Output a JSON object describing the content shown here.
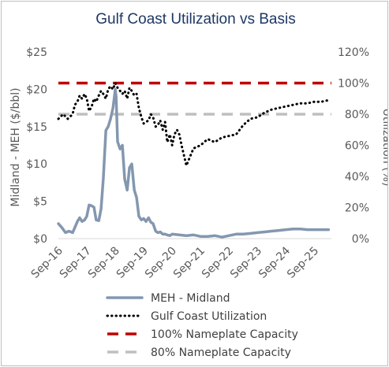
{
  "chart_data": {
    "type": "line",
    "title": "Gulf Coast Utilization vs Basis",
    "ylabel_left": "Midland - MEH ($/bbl)",
    "ylabel_right": "Utilization (%)",
    "ylim_left": [
      0,
      25
    ],
    "ylim_right": [
      0,
      120
    ],
    "yticks_left": [
      "$0",
      "$5",
      "$10",
      "$15",
      "$20",
      "$25"
    ],
    "yticks_right": [
      "0%",
      "20%",
      "40%",
      "60%",
      "80%",
      "100%",
      "120%"
    ],
    "x_categories": [
      "Sep-16",
      "Sep-17",
      "Sep-18",
      "Sep-19",
      "Sep-20",
      "Sep-21",
      "Sep-22",
      "Sep-23",
      "Sep-24",
      "Sep-25"
    ],
    "grid": false,
    "legend_position": "bottom",
    "series": [
      {
        "name": "MEH - Midland",
        "axis": "left",
        "style": "solid",
        "color": "#8497b0",
        "x": [
          0,
          0.12,
          0.25,
          0.37,
          0.5,
          0.58,
          0.67,
          0.75,
          0.83,
          0.92,
          1.0,
          1.08,
          1.17,
          1.25,
          1.33,
          1.42,
          1.5,
          1.58,
          1.67,
          1.75,
          1.83,
          1.92,
          2.0,
          2.03,
          2.08,
          2.17,
          2.25,
          2.33,
          2.42,
          2.5,
          2.58,
          2.67,
          2.75,
          2.83,
          2.92,
          3.0,
          3.08,
          3.17,
          3.25,
          3.33,
          3.42,
          3.5,
          3.58,
          3.67,
          3.75,
          3.83,
          3.92,
          4.0,
          4.25,
          4.5,
          4.75,
          5.0,
          5.25,
          5.5,
          5.75,
          6.0,
          6.25,
          6.5,
          6.75,
          7.0,
          7.25,
          7.5,
          7.75,
          8.0,
          8.25,
          8.5,
          8.75,
          9.0,
          9.25,
          9.5
        ],
        "y": [
          2.0,
          1.5,
          0.8,
          1.0,
          0.8,
          1.5,
          2.3,
          2.8,
          2.3,
          2.5,
          3.0,
          4.5,
          4.4,
          4.2,
          2.5,
          2.4,
          4.0,
          8.0,
          14.5,
          15.0,
          16.0,
          17.5,
          20.0,
          19.0,
          13.0,
          12.0,
          12.5,
          8.0,
          6.5,
          9.5,
          10.0,
          6.5,
          5.5,
          3.0,
          2.5,
          2.7,
          2.3,
          2.8,
          2.2,
          2.0,
          1.0,
          0.8,
          0.9,
          0.6,
          0.6,
          0.5,
          0.4,
          0.6,
          0.5,
          0.4,
          0.5,
          0.3,
          0.3,
          0.4,
          0.2,
          0.4,
          0.6,
          0.6,
          0.7,
          0.8,
          0.9,
          1.0,
          1.1,
          1.2,
          1.3,
          1.3,
          1.2,
          1.2,
          1.2,
          1.2
        ]
      },
      {
        "name": "Gulf Coast Utilization",
        "axis": "right",
        "style": "dotted",
        "color": "#000000",
        "x": [
          0,
          0.17,
          0.33,
          0.5,
          0.58,
          0.67,
          0.75,
          0.83,
          0.92,
          1.0,
          1.08,
          1.17,
          1.25,
          1.33,
          1.42,
          1.5,
          1.58,
          1.67,
          1.75,
          1.83,
          1.92,
          2.0,
          2.08,
          2.17,
          2.25,
          2.33,
          2.42,
          2.5,
          2.58,
          2.67,
          2.75,
          2.83,
          2.92,
          3.0,
          3.08,
          3.17,
          3.25,
          3.33,
          3.42,
          3.5,
          3.58,
          3.67,
          3.75,
          3.83,
          3.92,
          4.0,
          4.08,
          4.17,
          4.25,
          4.33,
          4.5,
          4.75,
          5.0,
          5.25,
          5.5,
          5.75,
          6.0,
          6.25,
          6.5,
          6.75,
          7.0,
          7.25,
          7.5,
          7.75,
          8.0,
          8.25,
          8.5,
          8.75,
          9.0,
          9.25,
          9.5
        ],
        "y": [
          77,
          80,
          77,
          80,
          86,
          88,
          92,
          90,
          93,
          90,
          82,
          85,
          90,
          88,
          92,
          95,
          93,
          90,
          96,
          98,
          96,
          100,
          97,
          95,
          93,
          95,
          90,
          97,
          95,
          92,
          93,
          84,
          78,
          74,
          75,
          76,
          80,
          78,
          72,
          73,
          76,
          70,
          75,
          62,
          67,
          60,
          67,
          70,
          67,
          60,
          47,
          58,
          60,
          64,
          62,
          65,
          66,
          67,
          73,
          77,
          78,
          81,
          83,
          84,
          85,
          86,
          87,
          87,
          88,
          88,
          89
        ]
      },
      {
        "name": "100% Nameplate Capacity",
        "axis": "right",
        "style": "dashed",
        "color": "#c00000",
        "y_const": 100
      },
      {
        "name": "80% Nameplate Capacity",
        "axis": "right",
        "style": "dashed",
        "color": "#bfbfbf",
        "y_const": 80
      }
    ]
  }
}
